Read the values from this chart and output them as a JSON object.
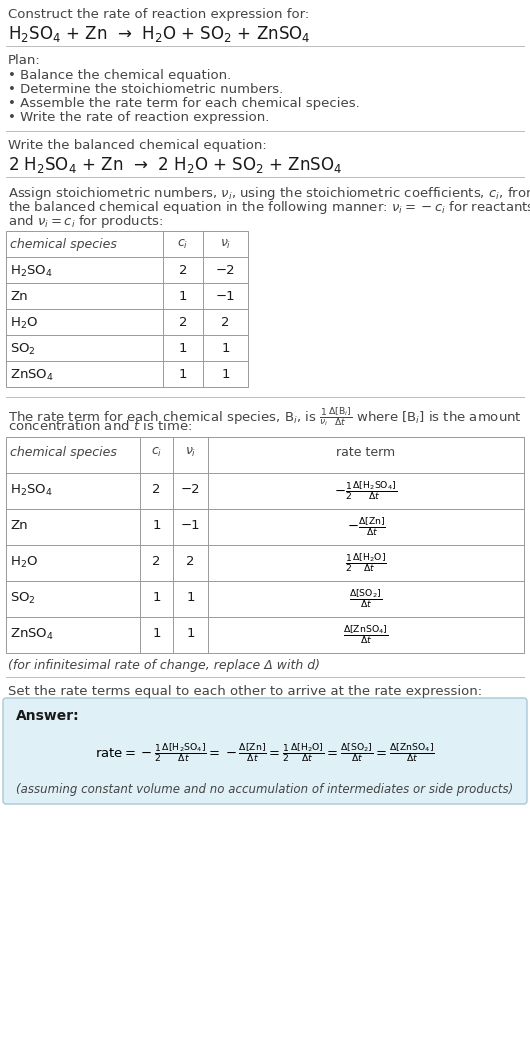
{
  "bg_color": "#ffffff",
  "text_color": "#1a1a1a",
  "gray_text": "#444444",
  "section1_title": "Construct the rate of reaction expression for:",
  "section1_eq": "H$_2$SO$_4$ + Zn  →  H$_2$O + SO$_2$ + ZnSO$_4$",
  "section2_title": "Plan:",
  "section2_bullets": [
    "• Balance the chemical equation.",
    "• Determine the stoichiometric numbers.",
    "• Assemble the rate term for each chemical species.",
    "• Write the rate of reaction expression."
  ],
  "section3_title": "Write the balanced chemical equation:",
  "section3_eq": "2 H$_2$SO$_4$ + Zn  →  2 H$_2$O + SO$_2$ + ZnSO$_4$",
  "section4_para": [
    "Assign stoichiometric numbers, $\\nu_i$, using the stoichiometric coefficients, $c_i$, from",
    "the balanced chemical equation in the following manner: $\\nu_i = -c_i$ for reactants",
    "and $\\nu_i = c_i$ for products:"
  ],
  "table1_headers": [
    "chemical species",
    "$c_i$",
    "$\\nu_i$"
  ],
  "table1_rows": [
    [
      "H$_2$SO$_4$",
      "2",
      "−2"
    ],
    [
      "Zn",
      "1",
      "−1"
    ],
    [
      "H$_2$O",
      "2",
      "2"
    ],
    [
      "SO$_2$",
      "1",
      "1"
    ],
    [
      "ZnSO$_4$",
      "1",
      "1"
    ]
  ],
  "section5_para": [
    "The rate term for each chemical species, B$_i$, is $\\frac{1}{\\nu_i}\\frac{\\Delta[\\mathrm{B}_i]}{\\Delta t}$ where [B$_i$] is the amount",
    "concentration and $t$ is time:"
  ],
  "table2_headers": [
    "chemical species",
    "$c_i$",
    "$\\nu_i$",
    "rate term"
  ],
  "table2_rows": [
    [
      "H$_2$SO$_4$",
      "2",
      "−2",
      "$-\\frac{1}{2}\\frac{\\Delta[\\mathrm{H_2SO_4}]}{\\Delta t}$"
    ],
    [
      "Zn",
      "1",
      "−1",
      "$-\\frac{\\Delta[\\mathrm{Zn}]}{\\Delta t}$"
    ],
    [
      "H$_2$O",
      "2",
      "2",
      "$\\frac{1}{2}\\frac{\\Delta[\\mathrm{H_2O}]}{\\Delta t}$"
    ],
    [
      "SO$_2$",
      "1",
      "1",
      "$\\frac{\\Delta[\\mathrm{SO_2}]}{\\Delta t}$"
    ],
    [
      "ZnSO$_4$",
      "1",
      "1",
      "$\\frac{\\Delta[\\mathrm{ZnSO_4}]}{\\Delta t}$"
    ]
  ],
  "section5_footer": "(for infinitesimal rate of change, replace Δ with d)",
  "section6_title": "Set the rate terms equal to each other to arrive at the rate expression:",
  "answer_label": "Answer:",
  "answer_eq": "$\\mathrm{rate} = -\\frac{1}{2}\\frac{\\Delta[\\mathrm{H_2SO_4}]}{\\Delta t} = -\\frac{\\Delta[\\mathrm{Zn}]}{\\Delta t} = \\frac{1}{2}\\frac{\\Delta[\\mathrm{H_2O}]}{\\Delta t} = \\frac{\\Delta[\\mathrm{SO_2}]}{\\Delta t} = \\frac{\\Delta[\\mathrm{ZnSO_4}]}{\\Delta t}$",
  "answer_footer": "(assuming constant volume and no accumulation of intermediates or side products)",
  "answer_bg": "#dff0f7",
  "answer_border": "#a8c8d8"
}
